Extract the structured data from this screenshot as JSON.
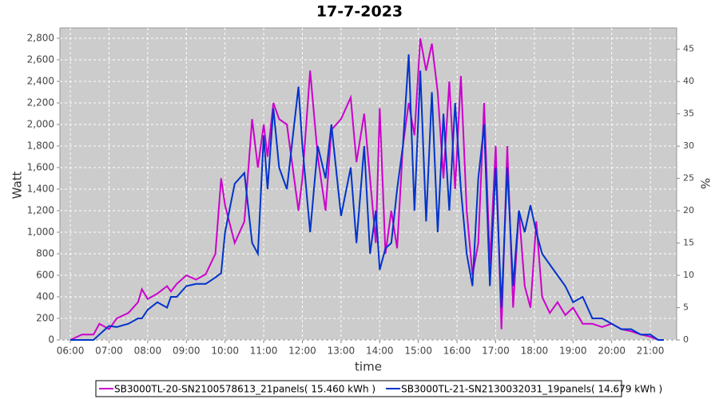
{
  "chart_data": {
    "type": "line",
    "title": "17-7-2023",
    "x_label": "time",
    "y_label": "Watt",
    "y2_label": "%",
    "xlim": [
      5.73,
      21.68
    ],
    "ylim": [
      0,
      2896
    ],
    "y2lim": [
      0,
      48.3
    ],
    "xticks": [
      {
        "value": 6,
        "label": "06:00"
      },
      {
        "value": 7,
        "label": "07:00"
      },
      {
        "value": 8,
        "label": "08:00"
      },
      {
        "value": 9,
        "label": "09:00"
      },
      {
        "value": 10,
        "label": "10:00"
      },
      {
        "value": 11,
        "label": "11:00"
      },
      {
        "value": 12,
        "label": "12:00"
      },
      {
        "value": 13,
        "label": "13:00"
      },
      {
        "value": 14,
        "label": "14:00"
      },
      {
        "value": 15,
        "label": "15:00"
      },
      {
        "value": 16,
        "label": "16:00"
      },
      {
        "value": 17,
        "label": "17:00"
      },
      {
        "value": 18,
        "label": "18:00"
      },
      {
        "value": 19,
        "label": "19:00"
      },
      {
        "value": 20,
        "label": "20:00"
      },
      {
        "value": 21,
        "label": "21:00"
      }
    ],
    "yticks": [
      0,
      200,
      400,
      600,
      800,
      {
        "value": 1000,
        "label": "1,000"
      },
      {
        "value": 1200,
        "label": "1,200"
      },
      {
        "value": 1400,
        "label": "1,400"
      },
      {
        "value": 1600,
        "label": "1,600"
      },
      {
        "value": 1800,
        "label": "1,800"
      },
      {
        "value": 2000,
        "label": "2,000"
      },
      {
        "value": 2200,
        "label": "2,200"
      },
      {
        "value": 2400,
        "label": "2,400"
      },
      {
        "value": 2600,
        "label": "2,600"
      },
      {
        "value": 2800,
        "label": "2,800"
      }
    ],
    "y2ticks": [
      0,
      5,
      10,
      15,
      20,
      25,
      30,
      35,
      40,
      45
    ],
    "grid": true,
    "x": [
      6.0,
      6.3,
      6.6,
      6.75,
      7.0,
      7.2,
      7.5,
      7.75,
      7.85,
      8.0,
      8.25,
      8.5,
      8.6,
      8.75,
      9.0,
      9.25,
      9.5,
      9.75,
      9.9,
      10.0,
      10.25,
      10.5,
      10.7,
      10.85,
      11.0,
      11.1,
      11.25,
      11.4,
      11.6,
      11.9,
      12.0,
      12.2,
      12.4,
      12.6,
      12.75,
      13.0,
      13.25,
      13.4,
      13.6,
      13.75,
      13.9,
      14.0,
      14.15,
      14.3,
      14.45,
      14.6,
      14.75,
      14.9,
      15.05,
      15.2,
      15.35,
      15.5,
      15.65,
      15.8,
      15.95,
      16.1,
      16.25,
      16.4,
      16.55,
      16.7,
      16.85,
      17.0,
      17.15,
      17.3,
      17.45,
      17.6,
      17.75,
      17.9,
      18.05,
      18.2,
      18.4,
      18.6,
      18.8,
      19.0,
      19.25,
      19.5,
      19.75,
      20.0,
      20.25,
      20.5,
      20.75,
      21.0,
      21.2,
      21.35
    ],
    "series": [
      {
        "name": "SB3000TL-20-SN2100578613_21panels( 15.460 kWh )",
        "color": "#cc00cc",
        "values": [
          0,
          50,
          50,
          150,
          100,
          200,
          250,
          350,
          470,
          380,
          430,
          500,
          450,
          520,
          600,
          560,
          610,
          800,
          1500,
          1250,
          900,
          1100,
          2050,
          1600,
          2000,
          1700,
          2200,
          2050,
          2000,
          1200,
          1500,
          2500,
          1700,
          1200,
          1950,
          2050,
          2250,
          1650,
          2100,
          1500,
          900,
          2150,
          800,
          1200,
          850,
          1800,
          2200,
          1900,
          2800,
          2500,
          2750,
          2300,
          1500,
          2400,
          1400,
          2450,
          1200,
          600,
          900,
          2200,
          700,
          1800,
          100,
          1800,
          300,
          1200,
          500,
          300,
          1100,
          400,
          250,
          350,
          230,
          300,
          150,
          150,
          120,
          150,
          100,
          80,
          50,
          30,
          0,
          0
        ]
      },
      {
        "name": "SB3000TL-21-SN2130032031_19panels( 14.679 kWh )",
        "color": "#0033cc",
        "values": [
          0,
          0,
          0,
          50,
          130,
          120,
          150,
          200,
          200,
          280,
          350,
          300,
          400,
          400,
          500,
          520,
          520,
          580,
          620,
          1000,
          1450,
          1550,
          900,
          800,
          1900,
          1400,
          2150,
          1600,
          1400,
          2350,
          1800,
          1000,
          1800,
          1500,
          2000,
          1150,
          1600,
          900,
          1800,
          800,
          1200,
          650,
          850,
          900,
          1400,
          1800,
          2650,
          1200,
          2500,
          1100,
          2300,
          1000,
          2100,
          1200,
          2200,
          1400,
          800,
          500,
          1500,
          2000,
          500,
          1600,
          300,
          1600,
          500,
          1200,
          1000,
          1250,
          1000,
          800,
          700,
          600,
          500,
          350,
          400,
          200,
          200,
          150,
          100,
          100,
          50,
          50,
          0,
          0
        ]
      }
    ],
    "legend": "bottom"
  }
}
